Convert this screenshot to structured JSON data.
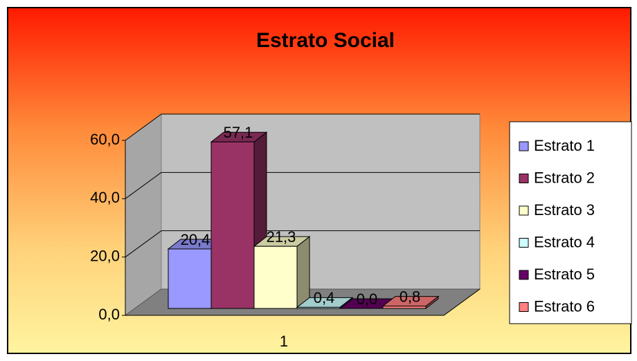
{
  "chart_data": {
    "type": "bar3d",
    "title": "Estrato Social",
    "categories": [
      "1"
    ],
    "series": [
      {
        "name": "Estrato 1",
        "color": "#9999ff",
        "values": [
          20.4
        ],
        "value_labels": [
          "20,4"
        ]
      },
      {
        "name": "Estrato 2",
        "color": "#993366",
        "values": [
          57.1
        ],
        "value_labels": [
          "57,1"
        ]
      },
      {
        "name": "Estrato 3",
        "color": "#ffffcc",
        "values": [
          21.3
        ],
        "value_labels": [
          "21,3"
        ]
      },
      {
        "name": "Estrato 4",
        "color": "#ccffff",
        "values": [
          0.4
        ],
        "value_labels": [
          "0,4"
        ]
      },
      {
        "name": "Estrato 5",
        "color": "#660066",
        "values": [
          0.0
        ],
        "value_labels": [
          "0,0"
        ]
      },
      {
        "name": "Estrato 6",
        "color": "#ff8080",
        "values": [
          0.8
        ],
        "value_labels": [
          "0,8"
        ]
      }
    ],
    "ylim": [
      0,
      60
    ],
    "yticks": [
      {
        "value": 0,
        "label": "0,0"
      },
      {
        "value": 20,
        "label": "20,0"
      },
      {
        "value": 40,
        "label": "40,0"
      },
      {
        "value": 60,
        "label": "60,0"
      }
    ],
    "grid": true,
    "legend": "right"
  }
}
